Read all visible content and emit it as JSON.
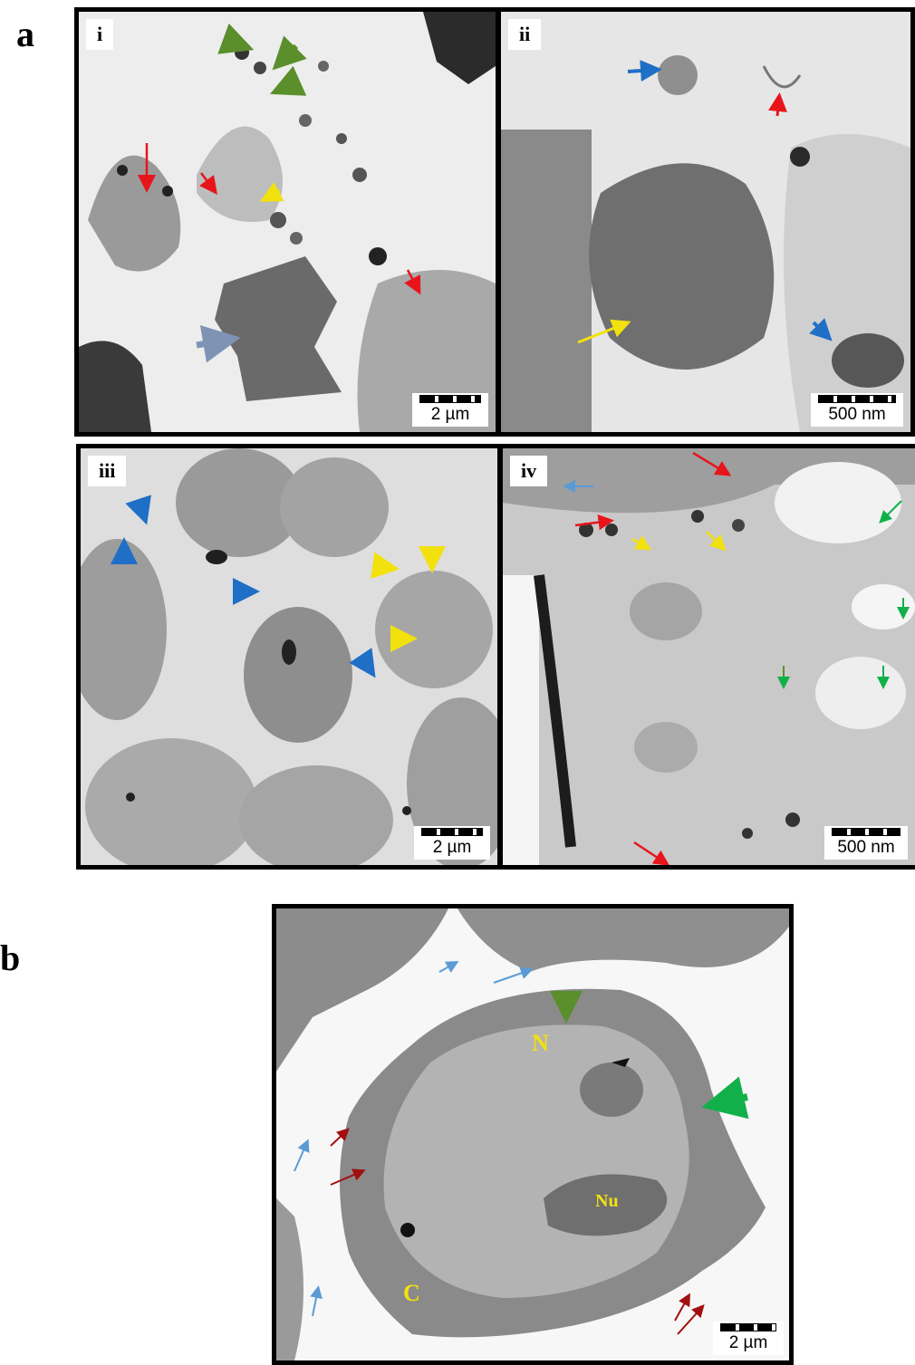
{
  "panel_labels": {
    "a": "a",
    "b": "b"
  },
  "subpanels": {
    "i": {
      "tag": "i",
      "scale": "2 µm"
    },
    "ii": {
      "tag": "ii",
      "scale": "500 nm"
    },
    "iii": {
      "tag": "iii",
      "scale": "2 µm"
    },
    "iv": {
      "tag": "iv",
      "scale": "500 nm"
    },
    "b": {
      "scale": "2 µm",
      "labels": {
        "nucleus": "N",
        "nucleolus": "Nu",
        "cytoplasm": "C"
      }
    }
  },
  "colors": {
    "red": "#e8141b",
    "dark_red": "#a01010",
    "blue": "#1f6fc6",
    "light_blue": "#5b9bd5",
    "yellow": "#f2e10d",
    "green": "#5a8f2c",
    "bright_green": "#11b04a",
    "slate": "#7f93b4",
    "label_yellow": "#f2e10d"
  }
}
